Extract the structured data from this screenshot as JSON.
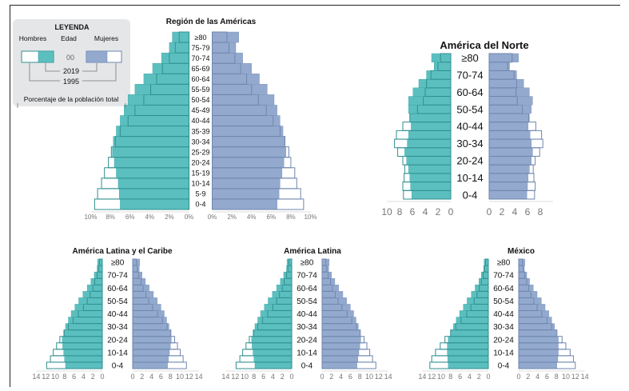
{
  "legend": {
    "title": "LEYENDA",
    "hombres": "Hombres",
    "edad": "Edad",
    "mujeres": "Mujeres",
    "age_sample": "00",
    "year_filled": "2019",
    "year_outline": "1995",
    "caption": "Porcentaje de la población total"
  },
  "colors": {
    "fill_men": "#5cbfbf",
    "fill_women": "#93a9cd",
    "outline": "#2f8f8f",
    "outline_w": "#6f86ae",
    "axis": "#777777"
  },
  "chart_data": [
    {
      "type": "bar",
      "title": "Región de las Américas",
      "categories": [
        "0-4",
        "5-9",
        "10-14",
        "15-19",
        "20-24",
        "25-29",
        "30-34",
        "35-39",
        "40-44",
        "45-49",
        "50-54",
        "55-59",
        "60-64",
        "65-69",
        "70-74",
        "75-79",
        "≥80"
      ],
      "series": [
        {
          "name": "Hombres",
          "year": "2019",
          "values": [
            7.0,
            7.1,
            7.2,
            7.4,
            7.6,
            7.8,
            7.7,
            7.4,
            7.0,
            6.6,
            6.2,
            5.5,
            4.6,
            3.7,
            2.8,
            2.0,
            1.7
          ]
        },
        {
          "name": "Hombres",
          "year": "1995",
          "values": [
            9.6,
            9.3,
            8.9,
            8.6,
            8.2,
            7.9,
            7.5,
            7.0,
            6.2,
            5.5,
            4.6,
            3.9,
            3.3,
            2.7,
            2.0,
            1.4,
            1.0
          ]
        },
        {
          "name": "Mujeres",
          "year": "2019",
          "values": [
            6.6,
            6.8,
            6.9,
            7.1,
            7.3,
            7.5,
            7.4,
            7.2,
            6.9,
            6.6,
            6.3,
            5.6,
            4.8,
            4.0,
            3.1,
            2.4,
            2.7
          ]
        },
        {
          "name": "Mujeres",
          "year": "1995",
          "values": [
            9.3,
            9.0,
            8.6,
            8.4,
            8.0,
            7.8,
            7.4,
            6.9,
            6.2,
            5.5,
            4.7,
            4.0,
            3.5,
            2.9,
            2.3,
            1.7,
            1.5
          ]
        }
      ],
      "xticks_left": [
        "10%",
        "8%",
        "6%",
        "4%",
        "2%",
        "0%"
      ],
      "xticks_right": [
        "0%",
        "2%",
        "4%",
        "6%",
        "8%",
        "10%"
      ],
      "xlim": [
        0,
        10
      ]
    },
    {
      "type": "bar",
      "title": "América del Norte",
      "categories": [
        "0-4",
        "5-9",
        "10-14",
        "15-19",
        "20-24",
        "25-29",
        "30-34",
        "35-39",
        "40-44",
        "45-49",
        "50-54",
        "55-59",
        "60-64",
        "65-69",
        "70-74",
        "75-79",
        "≥80"
      ],
      "series": [
        {
          "name": "Hombres",
          "year": "2019",
          "values": [
            6.1,
            6.3,
            6.4,
            6.6,
            6.9,
            7.2,
            6.8,
            6.6,
            6.2,
            6.4,
            6.6,
            6.6,
            5.9,
            5.0,
            3.8,
            2.6,
            3.0
          ]
        },
        {
          "name": "Hombres",
          "year": "1995",
          "values": [
            7.4,
            7.5,
            7.3,
            7.2,
            7.5,
            8.3,
            8.8,
            8.5,
            7.5,
            6.4,
            5.2,
            4.3,
            4.0,
            3.8,
            3.1,
            2.0,
            1.6
          ]
        },
        {
          "name": "Mujeres",
          "year": "2019",
          "values": [
            5.9,
            6.0,
            6.1,
            6.3,
            6.6,
            6.8,
            6.6,
            6.4,
            6.1,
            6.3,
            6.6,
            6.8,
            6.3,
            5.4,
            4.3,
            3.2,
            4.6
          ]
        },
        {
          "name": "Mujeres",
          "year": "1995",
          "values": [
            7.1,
            7.2,
            7.0,
            6.9,
            7.2,
            7.9,
            8.4,
            8.2,
            7.3,
            6.2,
            5.2,
            4.4,
            4.2,
            4.3,
            3.9,
            2.9,
            3.6
          ]
        }
      ],
      "xticks_left": [
        "10",
        "8",
        "6",
        "4",
        "2",
        "0"
      ],
      "xticks_right": [
        "0",
        "2",
        "4",
        "6",
        "8"
      ],
      "ylabels_shown": [
        "0-4",
        "10-14",
        "20-24",
        "30-34",
        "40-44",
        "50-54",
        "60-64",
        "70-74",
        "≥80"
      ],
      "xlim": [
        0,
        10
      ]
    },
    {
      "type": "bar",
      "title": "América Latina y el Caribe",
      "categories": [
        "0-4",
        "5-9",
        "10-14",
        "15-19",
        "20-24",
        "25-29",
        "30-34",
        "35-39",
        "40-44",
        "45-49",
        "50-54",
        "55-59",
        "60-64",
        "65-69",
        "70-74",
        "75-79",
        "≥80"
      ],
      "series": [
        {
          "name": "Hombres",
          "year": "2019",
          "values": [
            7.8,
            8.0,
            8.2,
            8.4,
            8.5,
            8.2,
            7.8,
            7.2,
            6.6,
            5.8,
            5.0,
            4.1,
            3.2,
            2.4,
            1.7,
            1.1,
            1.0
          ]
        },
        {
          "name": "Hombres",
          "year": "1995",
          "values": [
            11.8,
            11.0,
            10.4,
            9.7,
            9.0,
            8.1,
            7.2,
            6.2,
            5.1,
            4.0,
            3.2,
            2.6,
            2.0,
            1.6,
            1.1,
            0.8,
            0.6
          ]
        },
        {
          "name": "Mujeres",
          "year": "2019",
          "values": [
            7.4,
            7.6,
            7.8,
            8.0,
            8.2,
            8.0,
            7.7,
            7.2,
            6.7,
            6.0,
            5.2,
            4.4,
            3.5,
            2.7,
            2.0,
            1.4,
            1.5
          ]
        },
        {
          "name": "Mujeres",
          "year": "1995",
          "values": [
            11.4,
            10.7,
            10.1,
            9.5,
            8.9,
            8.1,
            7.3,
            6.3,
            5.3,
            4.2,
            3.4,
            2.8,
            2.2,
            1.8,
            1.3,
            1.0,
            0.8
          ]
        }
      ],
      "xticks_left": [
        "14",
        "12",
        "10",
        "8",
        "6",
        "4",
        "2",
        "0"
      ],
      "xticks_right": [
        "0",
        "2",
        "4",
        "6",
        "8",
        "10",
        "12",
        "14"
      ],
      "ylabels_shown": [
        "0-4",
        "10-14",
        "20-24",
        "30-34",
        "40-44",
        "50-54",
        "60-64",
        "70-74",
        "≥80"
      ],
      "xlim": [
        0,
        14
      ]
    },
    {
      "type": "bar",
      "title": "América Latina",
      "categories": [
        "0-4",
        "5-9",
        "10-14",
        "15-19",
        "20-24",
        "25-29",
        "30-34",
        "35-39",
        "40-44",
        "45-49",
        "50-54",
        "55-59",
        "60-64",
        "65-69",
        "70-74",
        "75-79",
        "≥80"
      ],
      "series": [
        {
          "name": "Hombres",
          "year": "2019",
          "values": [
            7.8,
            8.0,
            8.2,
            8.4,
            8.5,
            8.2,
            7.8,
            7.2,
            6.6,
            5.8,
            5.0,
            4.1,
            3.2,
            2.4,
            1.7,
            1.1,
            1.0
          ]
        },
        {
          "name": "Hombres",
          "year": "1995",
          "values": [
            11.8,
            11.0,
            10.4,
            9.7,
            9.0,
            8.1,
            7.2,
            6.2,
            5.1,
            4.0,
            3.2,
            2.6,
            2.0,
            1.6,
            1.1,
            0.8,
            0.6
          ]
        },
        {
          "name": "Mujeres",
          "year": "2019",
          "values": [
            7.4,
            7.6,
            7.8,
            8.0,
            8.2,
            8.0,
            7.7,
            7.2,
            6.7,
            6.0,
            5.2,
            4.4,
            3.5,
            2.7,
            2.0,
            1.4,
            1.5
          ]
        },
        {
          "name": "Mujeres",
          "year": "1995",
          "values": [
            11.4,
            10.7,
            10.1,
            9.5,
            8.9,
            8.1,
            7.3,
            6.3,
            5.3,
            4.2,
            3.4,
            2.8,
            2.2,
            1.8,
            1.3,
            1.0,
            0.8
          ]
        }
      ],
      "xticks_left": [
        "14",
        "12",
        "10",
        "8",
        "6",
        "4",
        "2",
        "0"
      ],
      "xticks_right": [
        "0",
        "2",
        "4",
        "6",
        "8",
        "10",
        "12",
        "14"
      ],
      "ylabels_shown": [
        "0-4",
        "10-14",
        "20-24",
        "30-34",
        "40-44",
        "50-54",
        "60-64",
        "70-74",
        "≥80"
      ],
      "xlim": [
        0,
        14
      ]
    },
    {
      "type": "bar",
      "title": "México",
      "categories": [
        "0-4",
        "5-9",
        "10-14",
        "15-19",
        "20-24",
        "25-29",
        "30-34",
        "35-39",
        "40-44",
        "45-49",
        "50-54",
        "55-59",
        "60-64",
        "65-69",
        "70-74",
        "75-79",
        "≥80"
      ],
      "series": [
        {
          "name": "Hombres",
          "year": "2019",
          "values": [
            8.5,
            8.6,
            8.7,
            8.7,
            8.5,
            8.0,
            7.4,
            6.8,
            6.1,
            5.3,
            4.5,
            3.6,
            2.8,
            2.0,
            1.5,
            1.0,
            0.9
          ]
        },
        {
          "name": "Hombres",
          "year": "1995",
          "values": [
            12.4,
            12.0,
            11.2,
            10.2,
            9.2,
            8.0,
            6.9,
            5.8,
            4.6,
            3.7,
            3.0,
            2.4,
            1.9,
            1.5,
            1.1,
            0.8,
            0.6
          ]
        },
        {
          "name": "Mujeres",
          "year": "2019",
          "values": [
            8.1,
            8.3,
            8.4,
            8.4,
            8.4,
            8.1,
            7.6,
            7.0,
            6.4,
            5.6,
            4.8,
            3.9,
            3.1,
            2.3,
            1.7,
            1.2,
            1.3
          ]
        },
        {
          "name": "Mujeres",
          "year": "1995",
          "values": [
            12.0,
            11.6,
            10.9,
            10.0,
            9.2,
            8.1,
            7.0,
            6.0,
            4.9,
            3.9,
            3.2,
            2.6,
            2.1,
            1.7,
            1.3,
            1.0,
            0.8
          ]
        }
      ],
      "xticks_left": [
        "14",
        "12",
        "10",
        "8",
        "6",
        "4",
        "2",
        "0"
      ],
      "xticks_right": [
        "0",
        "2",
        "4",
        "6",
        "8",
        "10",
        "12",
        "14"
      ],
      "ylabels_shown": [
        "0-4",
        "10-14",
        "20-24",
        "30-34",
        "40-44",
        "50-54",
        "60-64",
        "70-74",
        "≥80"
      ],
      "xlim": [
        0,
        14
      ]
    }
  ]
}
